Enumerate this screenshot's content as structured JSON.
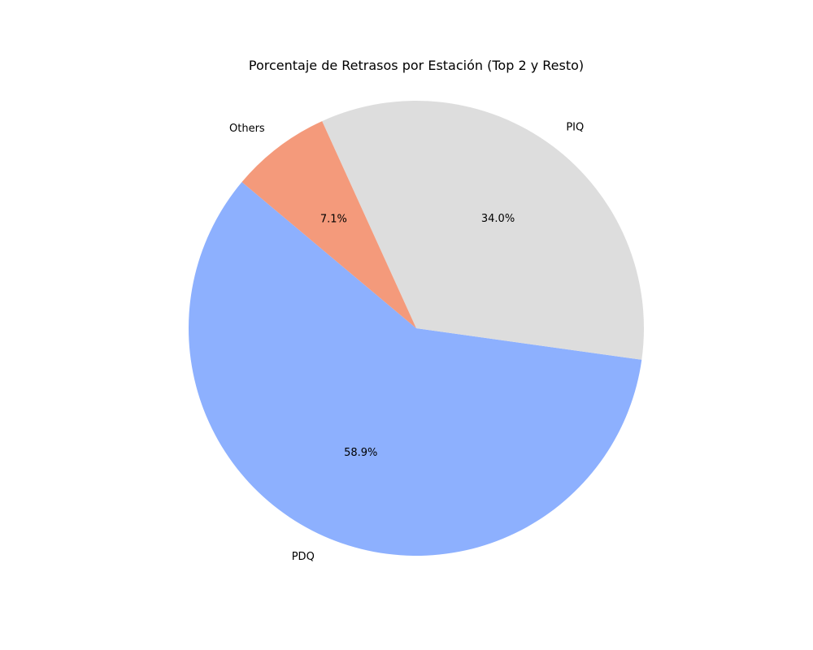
{
  "chart_data": {
    "type": "pie",
    "title": "Porcentaje de Retrasos por Estación (Top 2 y Resto)",
    "slices": [
      {
        "label": "PDQ",
        "value": 58.9,
        "pct_label": "58.9%",
        "color": "#8db0fe"
      },
      {
        "label": "PIQ",
        "value": 34.0,
        "pct_label": "34.0%",
        "color": "#dddddd"
      },
      {
        "label": "Others",
        "value": 7.1,
        "pct_label": "7.1%",
        "color": "#f49a7b"
      }
    ],
    "start_angle_deg": 140,
    "direction": "counterclockwise"
  }
}
